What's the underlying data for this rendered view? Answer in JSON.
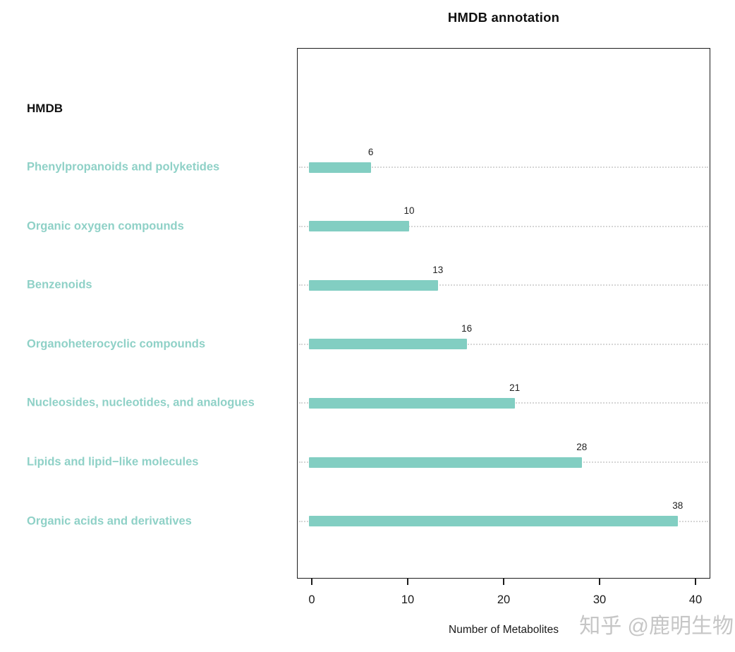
{
  "title": "HMDB annotation",
  "y_axis_header": "HMDB",
  "x_axis_title": "Number of Metabolites",
  "watermark": "知乎 @鹿明生物",
  "colors": {
    "bar": "#82cec2",
    "category_label": "#8fd1c7",
    "guide_dots": "#d6d6d6",
    "axis": "#1c1c1c",
    "value_label": "#222222",
    "watermark": "#c3c3c3"
  },
  "chart_data": {
    "type": "bar",
    "orientation": "horizontal",
    "title": "HMDB annotation",
    "xlabel": "Number of Metabolites",
    "ylabel": "HMDB",
    "xlim": [
      0,
      42
    ],
    "x_ticks": [
      0,
      10,
      20,
      30,
      40
    ],
    "grid": "dotted horizontal guide line behind each bar",
    "legend_position": "none",
    "categories": [
      "Phenylpropanoids and polyketides",
      "Organic oxygen compounds",
      "Benzenoids",
      "Organoheterocyclic compounds",
      "Nucleosides, nucleotides, and analogues",
      "Lipids and lipid−like molecules",
      "Organic acids and derivatives"
    ],
    "values": [
      6,
      10,
      13,
      16,
      21,
      28,
      38
    ]
  }
}
